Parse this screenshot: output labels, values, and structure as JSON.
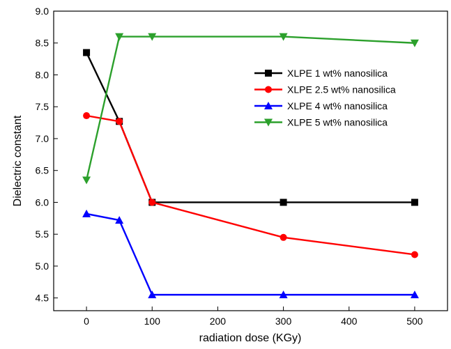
{
  "chart_data": {
    "type": "line",
    "xlabel": "radiation dose (KGy)",
    "ylabel": "Dielectric constant",
    "xlim": [
      -50,
      550
    ],
    "ylim": [
      4.3,
      9.0
    ],
    "xticks": [
      0,
      100,
      200,
      300,
      400,
      500
    ],
    "yticks": [
      4.5,
      5.0,
      5.5,
      6.0,
      6.5,
      7.0,
      7.5,
      8.0,
      8.5,
      9.0
    ],
    "xtick_labels": [
      "0",
      "100",
      "200",
      "300",
      "400",
      "500"
    ],
    "ytick_labels": [
      "4.5",
      "5.0",
      "5.5",
      "6.0",
      "6.5",
      "7.0",
      "7.5",
      "8.0",
      "8.5",
      "9.0"
    ],
    "x": [
      0,
      50,
      100,
      300,
      500
    ],
    "grid": false,
    "legend_position": "top-right",
    "series": [
      {
        "name": "XLPE 1 wt% nanosilica",
        "color": "#000000",
        "marker": "square",
        "values": [
          8.35,
          7.27,
          6.0,
          6.0,
          6.0
        ]
      },
      {
        "name": "XLPE 2.5 wt% nanosilica",
        "color": "#ff0000",
        "marker": "circle",
        "values": [
          7.36,
          7.27,
          6.0,
          5.45,
          5.18
        ]
      },
      {
        "name": "XLPE 4 wt% nanosilica",
        "color": "#0000ff",
        "marker": "triangle-up",
        "values": [
          5.82,
          5.72,
          4.55,
          4.55,
          4.55
        ]
      },
      {
        "name": "XLPE 5 wt% nanosilica",
        "color": "#2ca02c",
        "marker": "triangle-down",
        "values": [
          6.35,
          8.6,
          8.6,
          8.6,
          8.5
        ]
      }
    ]
  }
}
